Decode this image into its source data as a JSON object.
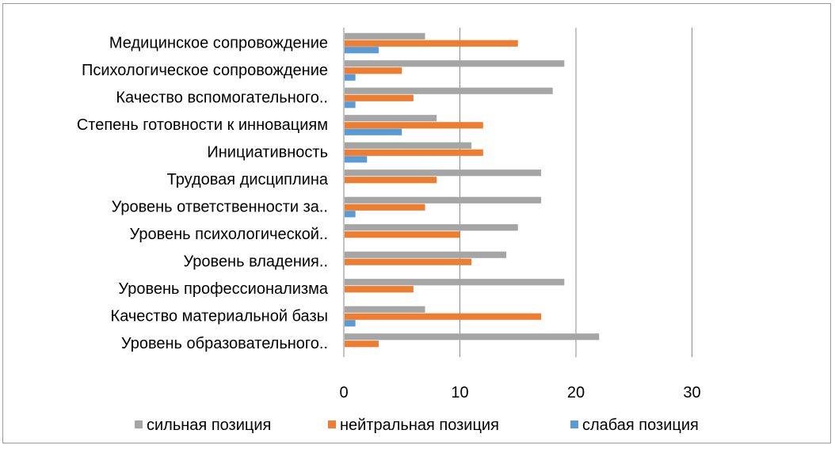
{
  "chart_data": {
    "type": "bar",
    "orientation": "horizontal",
    "categories": [
      "Медицинское сопровождение",
      "Психологическое сопровождение",
      "Качество вспомогательного..",
      "Степень готовности к инновациям",
      "Инициативность",
      "Трудовая дисциплина",
      "Уровень ответственности за..",
      "Уровень психологической..",
      "Уровень владения..",
      "Уровень профессионализма",
      "Качество материальной базы",
      "Уровень образовательного.."
    ],
    "series": [
      {
        "name": "сильная позиция",
        "color": "#a5a5a5",
        "values": [
          7,
          19,
          18,
          8,
          11,
          17,
          17,
          15,
          14,
          19,
          7,
          22
        ]
      },
      {
        "name": "нейтральная позиция",
        "color": "#ed7d31",
        "values": [
          15,
          5,
          6,
          12,
          12,
          8,
          7,
          10,
          11,
          6,
          17,
          3
        ]
      },
      {
        "name": "слабая позиция",
        "color": "#5b9bd5",
        "values": [
          3,
          1,
          1,
          5,
          2,
          0,
          1,
          0,
          0,
          0,
          1,
          0
        ]
      }
    ],
    "xlim": [
      0,
      30
    ],
    "xticks": [
      "0",
      "10",
      "20",
      "30"
    ],
    "grid": "vertical",
    "legend_position": "bottom"
  }
}
